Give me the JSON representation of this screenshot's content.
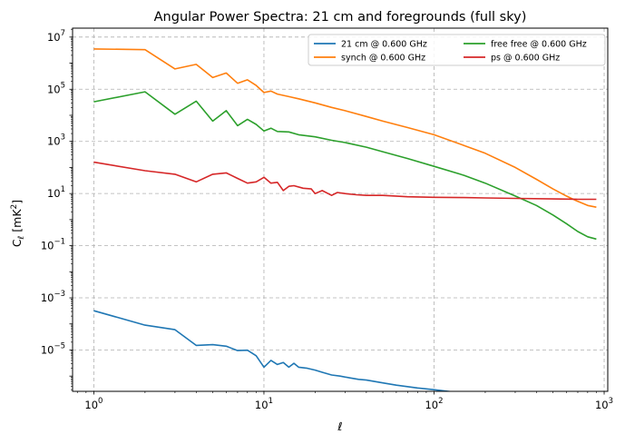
{
  "chart_data": {
    "type": "line",
    "title": "Angular Power Spectra: 21 cm and foregrounds (full sky)",
    "xlabel": "ℓ",
    "ylabel_main": "C",
    "ylabel_sub": "ℓ",
    "ylabel_unit": "[mK",
    "ylabel_unit_exp": "2",
    "ylabel_close": "]",
    "xscale": "log",
    "yscale": "log",
    "xlim": [
      0.75,
      1050
    ],
    "ylim": [
      2.6e-07,
      22000000.0
    ],
    "grid": true,
    "legend_position": "top-right",
    "x_ticks": [
      {
        "value": 1,
        "base": "10",
        "exp": "0"
      },
      {
        "value": 10,
        "base": "10",
        "exp": "1"
      },
      {
        "value": 100,
        "base": "10",
        "exp": "2"
      },
      {
        "value": 1000,
        "base": "10",
        "exp": "3"
      }
    ],
    "y_ticks": [
      {
        "value": 1e-05,
        "base": "10",
        "exp": "−5"
      },
      {
        "value": 0.001,
        "base": "10",
        "exp": "−3"
      },
      {
        "value": 0.1,
        "base": "10",
        "exp": "−1"
      },
      {
        "value": 10,
        "base": "10",
        "exp": "1"
      },
      {
        "value": 1000.0,
        "base": "10",
        "exp": "3"
      },
      {
        "value": 100000.0,
        "base": "10",
        "exp": "5"
      },
      {
        "value": 10000000.0,
        "base": "10",
        "exp": "7"
      }
    ],
    "series": [
      {
        "name": "21 cm @ 0.600 GHz",
        "color": "#1f77b4",
        "points": [
          [
            1,
            0.00032
          ],
          [
            2,
            9e-05
          ],
          [
            3,
            6e-05
          ],
          [
            4,
            1.5e-05
          ],
          [
            5,
            1.6e-05
          ],
          [
            6,
            1.4e-05
          ],
          [
            7,
            9.5e-06
          ],
          [
            8,
            9.8e-06
          ],
          [
            9,
            6e-06
          ],
          [
            10,
            2.2e-06
          ],
          [
            11,
            4e-06
          ],
          [
            12,
            2.8e-06
          ],
          [
            13,
            3.3e-06
          ],
          [
            14,
            2.2e-06
          ],
          [
            15,
            3.1e-06
          ],
          [
            16,
            2.2e-06
          ],
          [
            18,
            2e-06
          ],
          [
            20,
            1.7e-06
          ],
          [
            22,
            1.4e-06
          ],
          [
            25,
            1.1e-06
          ],
          [
            28,
            1e-06
          ],
          [
            32,
            8.5e-07
          ],
          [
            36,
            7.5e-07
          ],
          [
            40,
            7e-07
          ],
          [
            50,
            5.5e-07
          ],
          [
            60,
            4.5e-07
          ],
          [
            80,
            3.5e-07
          ],
          [
            100,
            3e-07
          ],
          [
            150,
            2.2e-07
          ],
          [
            200,
            1.8e-07
          ],
          [
            300,
            1.3e-07
          ],
          [
            400,
            1e-07
          ],
          [
            500,
            9e-08
          ]
        ]
      },
      {
        "name": "synch @ 0.600 GHz",
        "color": "#ff7f0e",
        "points": [
          [
            1,
            3500000.0
          ],
          [
            2,
            3300000.0
          ],
          [
            3,
            600000.0
          ],
          [
            4,
            900000.0
          ],
          [
            5,
            280000.0
          ],
          [
            6,
            420000.0
          ],
          [
            7,
            170000.0
          ],
          [
            8,
            230000.0
          ],
          [
            9,
            140000.0
          ],
          [
            10,
            75000.0
          ],
          [
            11,
            85000.0
          ],
          [
            12,
            65000.0
          ],
          [
            14,
            52000.0
          ],
          [
            16,
            43000.0
          ],
          [
            20,
            30000.0
          ],
          [
            25,
            20000.0
          ],
          [
            30,
            15000.0
          ],
          [
            40,
            9000.0
          ],
          [
            50,
            6000.0
          ],
          [
            70,
            3400.0
          ],
          [
            100,
            1800.0
          ],
          [
            150,
            700.0
          ],
          [
            200,
            350.0
          ],
          [
            300,
            100.0
          ],
          [
            400,
            35.0
          ],
          [
            500,
            15.0
          ],
          [
            600,
            8
          ],
          [
            700,
            5
          ],
          [
            800,
            3.5
          ],
          [
            900,
            3
          ]
        ]
      },
      {
        "name": "free free @ 0.600 GHz",
        "color": "#2ca02c",
        "points": [
          [
            1,
            33000.0
          ],
          [
            2,
            80000.0
          ],
          [
            3,
            11000.0
          ],
          [
            4,
            35000.0
          ],
          [
            5,
            6000.0
          ],
          [
            6,
            15000.0
          ],
          [
            7,
            4000.0
          ],
          [
            8,
            7000.0
          ],
          [
            9,
            4500.0
          ],
          [
            10,
            2500.0
          ],
          [
            11,
            3200.0
          ],
          [
            12,
            2400.0
          ],
          [
            14,
            2300.0
          ],
          [
            16,
            1800.0
          ],
          [
            20,
            1500.0
          ],
          [
            25,
            1100.0
          ],
          [
            30,
            900.0
          ],
          [
            40,
            600.0
          ],
          [
            50,
            400.0
          ],
          [
            70,
            220.0
          ],
          [
            100,
            110.0
          ],
          [
            150,
            50.0
          ],
          [
            200,
            25.0
          ],
          [
            300,
            8
          ],
          [
            400,
            3.5
          ],
          [
            500,
            1.5
          ],
          [
            600,
            0.7
          ],
          [
            700,
            0.35
          ],
          [
            800,
            0.22
          ],
          [
            900,
            0.18
          ]
        ]
      },
      {
        "name": "ps @ 0.600 GHz",
        "color": "#d62728",
        "points": [
          [
            1,
            160
          ],
          [
            2,
            75
          ],
          [
            3,
            55
          ],
          [
            4,
            28
          ],
          [
            5,
            55
          ],
          [
            6,
            62
          ],
          [
            7,
            38
          ],
          [
            8,
            25
          ],
          [
            9,
            28
          ],
          [
            10,
            42
          ],
          [
            11,
            25
          ],
          [
            12,
            27
          ],
          [
            13,
            13
          ],
          [
            14,
            19
          ],
          [
            15,
            20
          ],
          [
            17,
            16
          ],
          [
            19,
            15
          ],
          [
            20,
            10
          ],
          [
            22,
            13
          ],
          [
            25,
            8.5
          ],
          [
            27,
            11
          ],
          [
            30,
            10
          ],
          [
            35,
            9
          ],
          [
            40,
            8.5
          ],
          [
            50,
            8.5
          ],
          [
            70,
            7.5
          ],
          [
            100,
            7.2
          ],
          [
            150,
            7.0
          ],
          [
            200,
            6.8
          ],
          [
            300,
            6.5
          ],
          [
            500,
            6.2
          ],
          [
            700,
            6.0
          ],
          [
            900,
            6.0
          ]
        ]
      }
    ]
  }
}
